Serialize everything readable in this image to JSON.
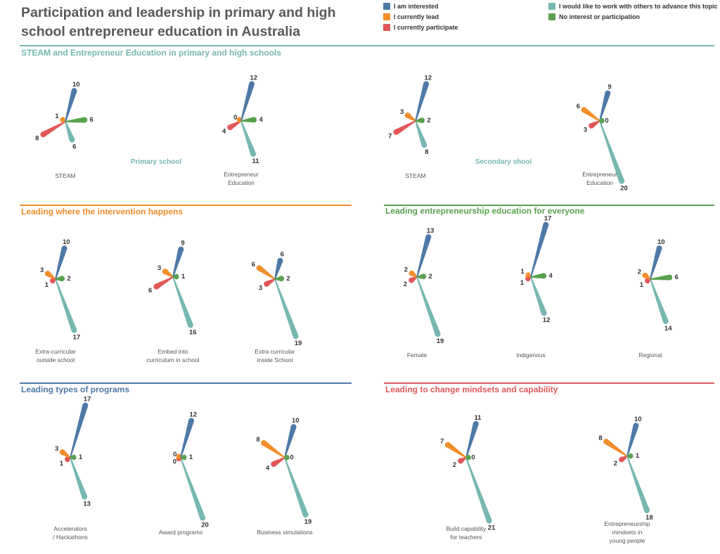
{
  "title": "Participation and leadership in primary and high school entrepreneur education in Australia",
  "colors": {
    "interested": "#4e79a7",
    "lead": "#f28e2b",
    "participate": "#e15759",
    "work_with_others": "#76b7b2",
    "no_interest": "#59a14f"
  },
  "legend": [
    {
      "key": "interested",
      "label": "I am interested"
    },
    {
      "key": "lead",
      "label": "I currently lead"
    },
    {
      "key": "participate",
      "label": "I currently participate"
    },
    {
      "key": "work_with_others",
      "label": "I would like to work with others to advance this topic"
    },
    {
      "key": "no_interest",
      "label": "No interest or participation"
    }
  ],
  "chart_data": [
    {
      "type": "radial-petal",
      "title": "STEAM and Entrepreneur Education in primary and high schools",
      "title_color": "#76b7b2",
      "subtitles": [
        "Primary school",
        "Secondary shool"
      ],
      "items": [
        {
          "label": "STEAM",
          "values": {
            "interested": 10,
            "lead": 1,
            "participate": 8,
            "work_with_others": 6,
            "no_interest": 6
          }
        },
        {
          "label": "Entrepreneur Education",
          "values": {
            "interested": 12,
            "lead": 0,
            "participate": 4,
            "work_with_others": 11,
            "no_interest": 4
          }
        },
        {
          "label": "STEAM",
          "values": {
            "interested": 12,
            "lead": 3,
            "participate": 7,
            "work_with_others": 8,
            "no_interest": 2
          }
        },
        {
          "label": "Entrepreneur Education",
          "values": {
            "interested": 9,
            "lead": 6,
            "participate": 3,
            "work_with_others": 20,
            "no_interest": 0
          }
        }
      ]
    },
    {
      "type": "radial-petal",
      "title": "Leading where the intervention happens",
      "title_color": "#f28e2b",
      "items": [
        {
          "label": "Extra-curricular outside school",
          "values": {
            "interested": 10,
            "lead": 3,
            "participate": 1,
            "work_with_others": 17,
            "no_interest": 2
          }
        },
        {
          "label": "Embed into curriculum in school",
          "values": {
            "interested": 9,
            "lead": 3,
            "participate": 6,
            "work_with_others": 16,
            "no_interest": 1
          }
        },
        {
          "label": "Extra curricular inside School",
          "values": {
            "interested": 6,
            "lead": 6,
            "participate": 3,
            "work_with_others": 19,
            "no_interest": 2
          }
        }
      ]
    },
    {
      "type": "radial-petal",
      "title": "Leading entrepreneurship education for everyone",
      "title_color": "#59a14f",
      "items": [
        {
          "label": "Female",
          "values": {
            "interested": 13,
            "lead": 2,
            "participate": 2,
            "work_with_others": 19,
            "no_interest": 2
          }
        },
        {
          "label": "Indigenous",
          "values": {
            "interested": 17,
            "lead": 1,
            "participate": 1,
            "work_with_others": 12,
            "no_interest": 4
          }
        },
        {
          "label": "Regional",
          "values": {
            "interested": 10,
            "lead": 2,
            "participate": 1,
            "work_with_others": 14,
            "no_interest": 6
          }
        }
      ]
    },
    {
      "type": "radial-petal",
      "title": "Leading types of programs",
      "title_color": "#4e79a7",
      "items": [
        {
          "label": "Accelerators / Hackathons",
          "values": {
            "interested": 17,
            "lead": 3,
            "participate": 1,
            "work_with_others": 13,
            "no_interest": 1
          }
        },
        {
          "label": "Award programs",
          "values": {
            "interested": 12,
            "lead": 0,
            "participate": 0,
            "work_with_others": 20,
            "no_interest": 1
          }
        },
        {
          "label": "Business simulations",
          "values": {
            "interested": 10,
            "lead": 8,
            "participate": 4,
            "work_with_others": 19,
            "no_interest": 0
          }
        }
      ]
    },
    {
      "type": "radial-petal",
      "title": "Leading to change mindsets and capability",
      "title_color": "#e15759",
      "items": [
        {
          "label": "Build capability for teachers",
          "values": {
            "interested": 11,
            "lead": 7,
            "participate": 2,
            "work_with_others": 21,
            "no_interest": 0
          }
        },
        {
          "label": "Entrepreneurship mindsets in young people",
          "values": {
            "interested": 10,
            "lead": 8,
            "participate": 2,
            "work_with_others": 18,
            "no_interest": 1
          }
        }
      ]
    }
  ]
}
